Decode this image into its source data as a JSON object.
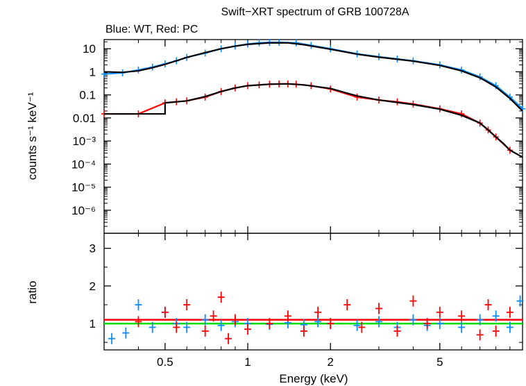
{
  "header": {
    "title": "Swift−XRT spectrum of GRB 100728A",
    "subtitle": "Blue: WT, Red: PC"
  },
  "chart_data": [
    {
      "type": "line",
      "panel": "spectrum",
      "ylabel": "counts s⁻¹ keV⁻¹",
      "xscale": "log",
      "yscale": "log",
      "xlim": [
        0.3,
        10
      ],
      "ylim": [
        1e-07,
        25
      ],
      "y_tick_labels": [
        "10",
        "1",
        "0.1",
        "0.01",
        "10⁻³",
        "10⁻⁴",
        "10⁻⁵",
        "10⁻⁶"
      ],
      "y_tick_values": [
        10,
        1,
        0.1,
        0.01,
        0.001,
        0.0001,
        1e-05,
        1e-06
      ],
      "series": [
        {
          "name": "WT",
          "color": "#0a8cff",
          "x": [
            0.3,
            0.35,
            0.4,
            0.45,
            0.5,
            0.55,
            0.6,
            0.7,
            0.8,
            0.9,
            1.0,
            1.1,
            1.2,
            1.3,
            1.5,
            1.7,
            2.0,
            2.5,
            3.0,
            3.5,
            4.0,
            5.0,
            6.0,
            7.0,
            8.0,
            9.0,
            10.0
          ],
          "y": [
            0.8,
            0.9,
            1.2,
            1.6,
            2.2,
            3.0,
            4.2,
            6.5,
            10,
            13,
            16,
            18,
            19,
            19,
            18,
            14,
            10,
            6.0,
            4.5,
            3.6,
            3.0,
            2.0,
            1.2,
            0.6,
            0.25,
            0.08,
            0.025
          ]
        },
        {
          "name": "PC",
          "color": "#ff0000",
          "x": [
            0.3,
            0.4,
            0.5,
            0.55,
            0.6,
            0.7,
            0.8,
            0.9,
            1.0,
            1.1,
            1.2,
            1.3,
            1.4,
            1.5,
            1.7,
            2.0,
            2.5,
            3.0,
            3.5,
            4.0,
            5.0,
            6.0,
            7.0,
            7.5,
            8.0,
            9.0
          ],
          "y": [
            0.015,
            0.015,
            0.045,
            0.05,
            0.055,
            0.08,
            0.14,
            0.2,
            0.25,
            0.27,
            0.29,
            0.3,
            0.3,
            0.29,
            0.25,
            0.18,
            0.08,
            0.06,
            0.05,
            0.04,
            0.025,
            0.015,
            0.006,
            0.003,
            0.0015,
            0.0004
          ]
        },
        {
          "name": "WT model",
          "color": "#000000",
          "x": [
            0.3,
            0.35,
            0.4,
            0.45,
            0.5,
            0.55,
            0.6,
            0.7,
            0.8,
            0.9,
            1.0,
            1.2,
            1.4,
            1.6,
            2.0,
            2.5,
            3.0,
            3.5,
            4.0,
            5.0,
            6.0,
            7.0,
            8.0,
            9.0,
            10.0
          ],
          "y": [
            1.0,
            0.95,
            1.1,
            1.5,
            2.1,
            3.0,
            4.2,
            6.8,
            10,
            13,
            15.5,
            18,
            18,
            15,
            9.5,
            5.8,
            4.3,
            3.5,
            2.9,
            1.9,
            1.1,
            0.55,
            0.22,
            0.07,
            0.02
          ]
        },
        {
          "name": "PC model",
          "color": "#000000",
          "x": [
            0.3,
            0.5,
            0.5,
            0.6,
            0.7,
            0.8,
            0.9,
            1.0,
            1.2,
            1.4,
            1.6,
            2.0,
            2.5,
            3.0,
            4.0,
            5.0,
            6.0,
            7.0,
            7.5,
            8.0,
            8.5,
            9.0,
            10.0
          ],
          "y": [
            0.015,
            0.015,
            0.045,
            0.055,
            0.085,
            0.14,
            0.2,
            0.25,
            0.29,
            0.3,
            0.27,
            0.19,
            0.09,
            0.06,
            0.038,
            0.024,
            0.013,
            0.006,
            0.003,
            0.0015,
            0.0008,
            0.0004,
            0.0002
          ]
        }
      ]
    },
    {
      "type": "scatter",
      "panel": "ratio",
      "xlabel": "Energy (keV)",
      "ylabel": "ratio",
      "xscale": "log",
      "xlim": [
        0.3,
        10
      ],
      "ylim": [
        0.3,
        3.4
      ],
      "x_ticks": [
        0.5,
        1,
        2,
        5
      ],
      "x_tick_labels": [
        "0.5",
        "1",
        "2",
        "5"
      ],
      "y_ticks": [
        1,
        2,
        3
      ],
      "y_tick_labels": [
        "1",
        "2",
        "3"
      ],
      "reference_lines": [
        {
          "name": "unity",
          "y": 1.0,
          "color": "#00e000"
        },
        {
          "name": "PC ratio baseline",
          "y": 1.1,
          "color": "#ff0000"
        }
      ],
      "series": [
        {
          "name": "WT",
          "color": "#0a8cff",
          "x": [
            0.32,
            0.36,
            0.4,
            0.45,
            0.5,
            0.55,
            0.6,
            0.7,
            0.8,
            0.9,
            1.0,
            1.2,
            1.4,
            1.6,
            1.8,
            2.0,
            2.5,
            3.0,
            3.5,
            4.0,
            4.5,
            5.0,
            6.0,
            7.0,
            8.0,
            9.0,
            9.8
          ],
          "y": [
            0.6,
            0.75,
            1.5,
            0.9,
            1.3,
            1.0,
            0.9,
            1.1,
            0.95,
            1.05,
            1.0,
            0.98,
            1.02,
            0.97,
            1.05,
            1.0,
            0.95,
            1.05,
            0.9,
            1.1,
            0.95,
            1.0,
            0.9,
            1.1,
            1.2,
            0.9,
            1.6
          ]
        },
        {
          "name": "PC",
          "color": "#ff0000",
          "x": [
            0.4,
            0.5,
            0.55,
            0.6,
            0.7,
            0.75,
            0.8,
            0.85,
            0.9,
            1.0,
            1.2,
            1.4,
            1.6,
            1.8,
            2.0,
            2.3,
            2.6,
            3.0,
            3.5,
            4.0,
            4.5,
            5.0,
            6.0,
            7.0,
            7.5,
            8.0,
            9.0
          ],
          "y": [
            1.05,
            1.3,
            0.9,
            1.5,
            0.8,
            1.2,
            1.7,
            0.6,
            1.1,
            0.85,
            1.0,
            1.2,
            0.8,
            1.3,
            1.0,
            1.5,
            0.9,
            1.4,
            0.8,
            1.6,
            1.0,
            1.3,
            1.2,
            0.7,
            1.5,
            0.8,
            1.3
          ]
        }
      ]
    }
  ]
}
